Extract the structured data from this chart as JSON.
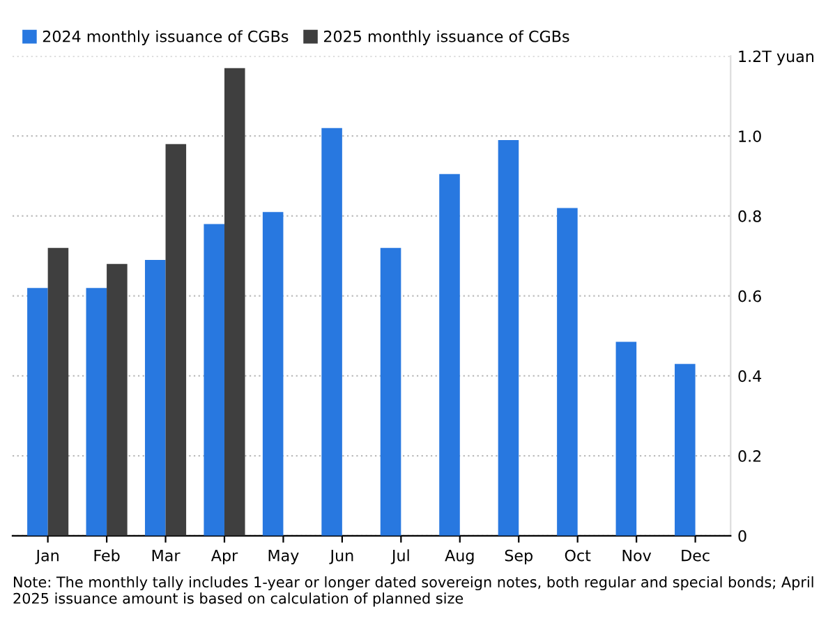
{
  "chart_data": {
    "type": "bar",
    "categories": [
      "Jan",
      "Feb",
      "Mar",
      "Apr",
      "May",
      "Jun",
      "Jul",
      "Aug",
      "Sep",
      "Oct",
      "Nov",
      "Dec"
    ],
    "series": [
      {
        "name": "2024 monthly issuance of CGBs",
        "color": "#2878e0",
        "values": [
          0.62,
          0.62,
          0.69,
          0.78,
          0.81,
          1.02,
          0.72,
          0.905,
          0.99,
          0.82,
          0.485,
          0.43
        ]
      },
      {
        "name": "2025 monthly issuance of CGBs",
        "color": "#3f3f3f",
        "values": [
          0.72,
          0.68,
          0.98,
          1.17,
          0,
          0,
          0,
          0,
          0,
          0,
          0,
          0
        ]
      }
    ],
    "ylim": [
      0,
      1.2
    ],
    "yticks": [
      0,
      0.2,
      0.4,
      0.6,
      0.8,
      {
        "value": 1.0,
        "label": "1.0"
      },
      {
        "value": 1.2,
        "label": "1.2T yuan"
      }
    ],
    "grid": "y",
    "legend": "top left",
    "annotations": [
      "Note: The monthly tally includes 1-year or longer dated sovereign notes, both regular and special bonds; April 2025 issuance amount is based on calculation of planned size"
    ]
  }
}
